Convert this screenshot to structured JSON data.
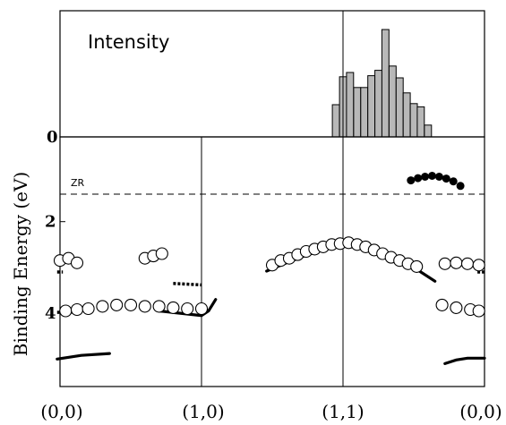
{
  "chart_data": [
    {
      "type": "bar",
      "title": "Intensity",
      "ytick": "0",
      "x_unit": "path position (0 = (0,0), 1 = (1,0), 2 = (1,1), 3 = (0,0))",
      "bars": [
        {
          "x": 1.95,
          "value": 0.3
        },
        {
          "x": 2.0,
          "value": 0.56
        },
        {
          "x": 2.05,
          "value": 0.6
        },
        {
          "x": 2.1,
          "value": 0.46
        },
        {
          "x": 2.15,
          "value": 0.46
        },
        {
          "x": 2.2,
          "value": 0.57
        },
        {
          "x": 2.25,
          "value": 0.62
        },
        {
          "x": 2.3,
          "value": 1.0
        },
        {
          "x": 2.35,
          "value": 0.66
        },
        {
          "x": 2.4,
          "value": 0.55
        },
        {
          "x": 2.45,
          "value": 0.41
        },
        {
          "x": 2.5,
          "value": 0.31
        },
        {
          "x": 2.55,
          "value": 0.28
        },
        {
          "x": 2.6,
          "value": 0.11
        }
      ]
    },
    {
      "type": "scatter",
      "ylabel": "Binding Energy (eV)",
      "yticks": [
        "2",
        "4"
      ],
      "ylim": [
        0.15,
        5.6
      ],
      "y_inverted": true,
      "xticks": [
        "(0,0)",
        "(1,0)",
        "(1,1)",
        "(0,0)"
      ],
      "reference_line": {
        "y": 1.4,
        "label": "ZR",
        "style": "dashed"
      },
      "open_circles": [
        [
          0.0,
          2.85
        ],
        [
          0.06,
          2.8
        ],
        [
          0.12,
          2.9
        ],
        [
          0.6,
          2.8
        ],
        [
          0.66,
          2.75
        ],
        [
          0.72,
          2.7
        ],
        [
          0.04,
          3.95
        ],
        [
          0.12,
          3.92
        ],
        [
          0.2,
          3.9
        ],
        [
          0.3,
          3.85
        ],
        [
          0.4,
          3.82
        ],
        [
          0.5,
          3.82
        ],
        [
          0.6,
          3.85
        ],
        [
          0.7,
          3.85
        ],
        [
          0.8,
          3.88
        ],
        [
          0.9,
          3.9
        ],
        [
          1.0,
          3.9
        ],
        [
          1.5,
          2.95
        ],
        [
          1.56,
          2.85
        ],
        [
          1.62,
          2.8
        ],
        [
          1.68,
          2.72
        ],
        [
          1.74,
          2.65
        ],
        [
          1.8,
          2.6
        ],
        [
          1.86,
          2.55
        ],
        [
          1.92,
          2.5
        ],
        [
          1.98,
          2.48
        ],
        [
          2.04,
          2.46
        ],
        [
          2.1,
          2.5
        ],
        [
          2.16,
          2.55
        ],
        [
          2.22,
          2.62
        ],
        [
          2.28,
          2.7
        ],
        [
          2.34,
          2.78
        ],
        [
          2.4,
          2.85
        ],
        [
          2.46,
          2.92
        ],
        [
          2.52,
          2.98
        ],
        [
          2.7,
          3.82
        ],
        [
          2.8,
          3.88
        ],
        [
          2.9,
          3.92
        ],
        [
          2.96,
          3.95
        ],
        [
          2.72,
          2.92
        ],
        [
          2.8,
          2.9
        ],
        [
          2.88,
          2.92
        ],
        [
          2.96,
          2.95
        ]
      ],
      "filled_circles": [
        [
          2.48,
          1.1
        ],
        [
          2.53,
          1.05
        ],
        [
          2.58,
          1.02
        ],
        [
          2.63,
          1.0
        ],
        [
          2.68,
          1.02
        ],
        [
          2.73,
          1.06
        ],
        [
          2.78,
          1.12
        ],
        [
          2.83,
          1.22
        ]
      ],
      "curves": [
        [
          [
            -0.02,
            5.0
          ],
          [
            0.15,
            4.92
          ],
          [
            0.35,
            4.88
          ]
        ],
        [
          [
            0.7,
            3.95
          ],
          [
            0.85,
            4.0
          ],
          [
            1.0,
            4.05
          ],
          [
            1.05,
            3.95
          ],
          [
            1.1,
            3.7
          ]
        ],
        [
          [
            1.46,
            3.08
          ],
          [
            1.6,
            2.9
          ],
          [
            1.75,
            2.72
          ],
          [
            1.9,
            2.58
          ],
          [
            2.0,
            2.54
          ],
          [
            2.1,
            2.56
          ],
          [
            2.25,
            2.68
          ],
          [
            2.4,
            2.85
          ],
          [
            2.55,
            3.1
          ],
          [
            2.65,
            3.3
          ]
        ],
        [
          [
            2.72,
            5.1
          ],
          [
            2.8,
            5.02
          ],
          [
            2.88,
            4.98
          ],
          [
            3.0,
            4.98
          ]
        ]
      ],
      "dashes": [
        [
          [
            -0.02,
            3.98
          ],
          [
            0.15,
            3.97
          ]
        ],
        [
          [
            0.8,
            3.35
          ],
          [
            1.0,
            3.38
          ]
        ],
        [
          [
            -0.02,
            3.1
          ],
          [
            0.02,
            3.1
          ]
        ],
        [
          [
            2.95,
            3.1
          ],
          [
            3.0,
            3.1
          ]
        ],
        [
          [
            2.9,
            3.98
          ],
          [
            3.0,
            3.98
          ]
        ]
      ]
    }
  ]
}
